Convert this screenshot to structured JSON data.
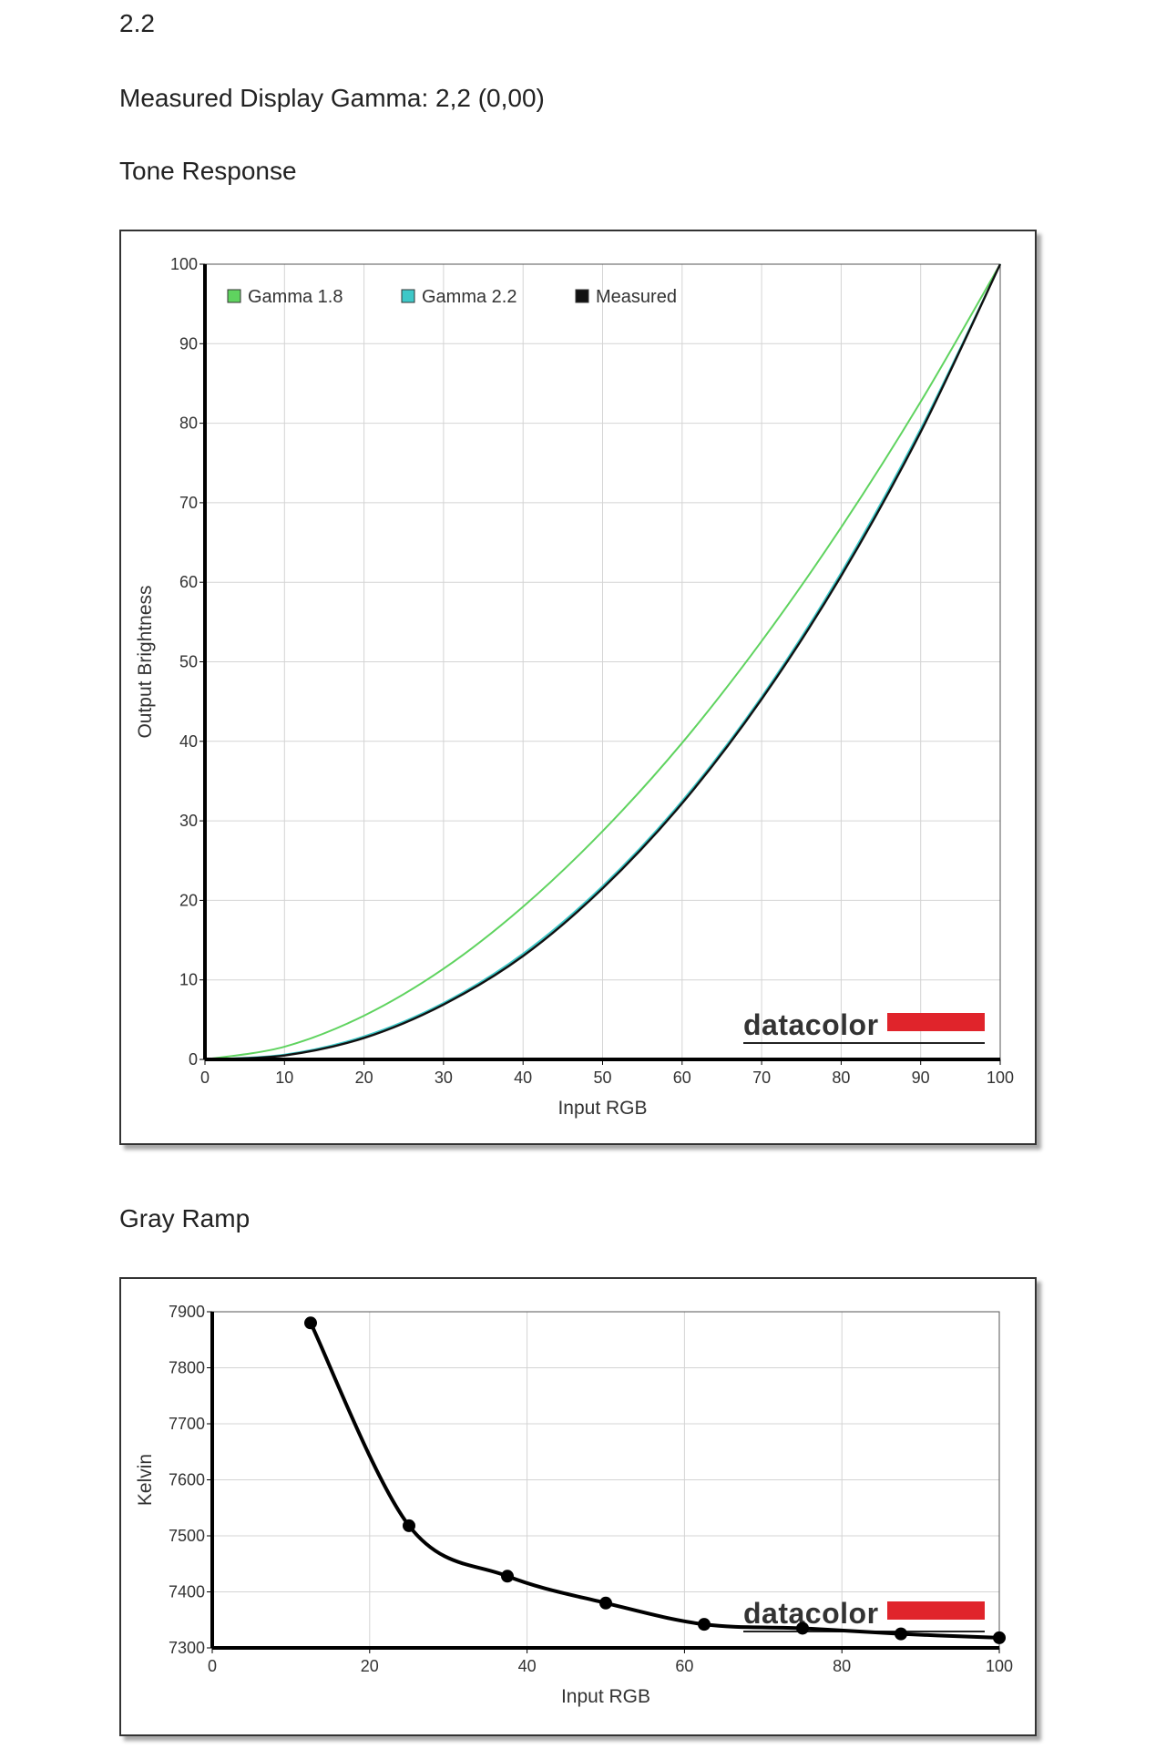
{
  "header": {
    "gamma_value": "2.2",
    "measured_gamma": "Measured Display Gamma: 2,2 (0,00)",
    "tone_title": "Tone Response",
    "gray_title": "Gray Ramp"
  },
  "logo": {
    "text": "datacolor",
    "color": "#e0242b"
  },
  "chart_data": [
    {
      "type": "line",
      "title": "Tone Response",
      "xlabel": "Input RGB",
      "ylabel": "Output Brightness",
      "xlim": [
        0,
        100
      ],
      "ylim": [
        0,
        100
      ],
      "x_ticks": [
        0,
        10,
        20,
        30,
        40,
        50,
        60,
        70,
        80,
        90,
        100
      ],
      "y_ticks": [
        0,
        10,
        20,
        30,
        40,
        50,
        60,
        70,
        80,
        90,
        100
      ],
      "grid": true,
      "legend_position": "top",
      "series": [
        {
          "name": "Gamma 1.8",
          "color": "#5fd35f",
          "x": [
            0,
            10,
            20,
            30,
            40,
            50,
            60,
            70,
            80,
            90,
            100
          ],
          "y": [
            0,
            1.6,
            5.5,
            11.4,
            19.2,
            28.7,
            39.8,
            52.6,
            66.9,
            82.7,
            100
          ]
        },
        {
          "name": "Gamma 2.2",
          "color": "#3ec8c8",
          "x": [
            0,
            10,
            20,
            30,
            40,
            50,
            60,
            70,
            80,
            90,
            100
          ],
          "y": [
            0,
            0.6,
            2.9,
            7.1,
            13.3,
            21.8,
            32.5,
            45.6,
            61.2,
            79.3,
            100
          ]
        },
        {
          "name": "Measured",
          "color": "#111111",
          "x": [
            0,
            10,
            20,
            30,
            40,
            50,
            60,
            70,
            80,
            90,
            100
          ],
          "y": [
            0,
            0.5,
            2.7,
            6.9,
            13.0,
            21.5,
            32.2,
            45.3,
            60.8,
            78.9,
            100
          ]
        }
      ]
    },
    {
      "type": "line",
      "title": "Gray Ramp",
      "xlabel": "Input RGB",
      "ylabel": "Kelvin",
      "xlim": [
        0,
        100
      ],
      "ylim": [
        7300,
        7900
      ],
      "x_ticks": [
        0,
        20,
        40,
        60,
        80,
        100
      ],
      "y_ticks": [
        7300,
        7400,
        7500,
        7600,
        7700,
        7800,
        7900
      ],
      "grid": true,
      "series": [
        {
          "color": "#000000",
          "x": [
            12.5,
            25,
            37.5,
            50,
            62.5,
            75,
            87.5,
            100
          ],
          "y": [
            7880,
            7518,
            7428,
            7380,
            7342,
            7335,
            7325,
            7318
          ]
        }
      ]
    }
  ]
}
